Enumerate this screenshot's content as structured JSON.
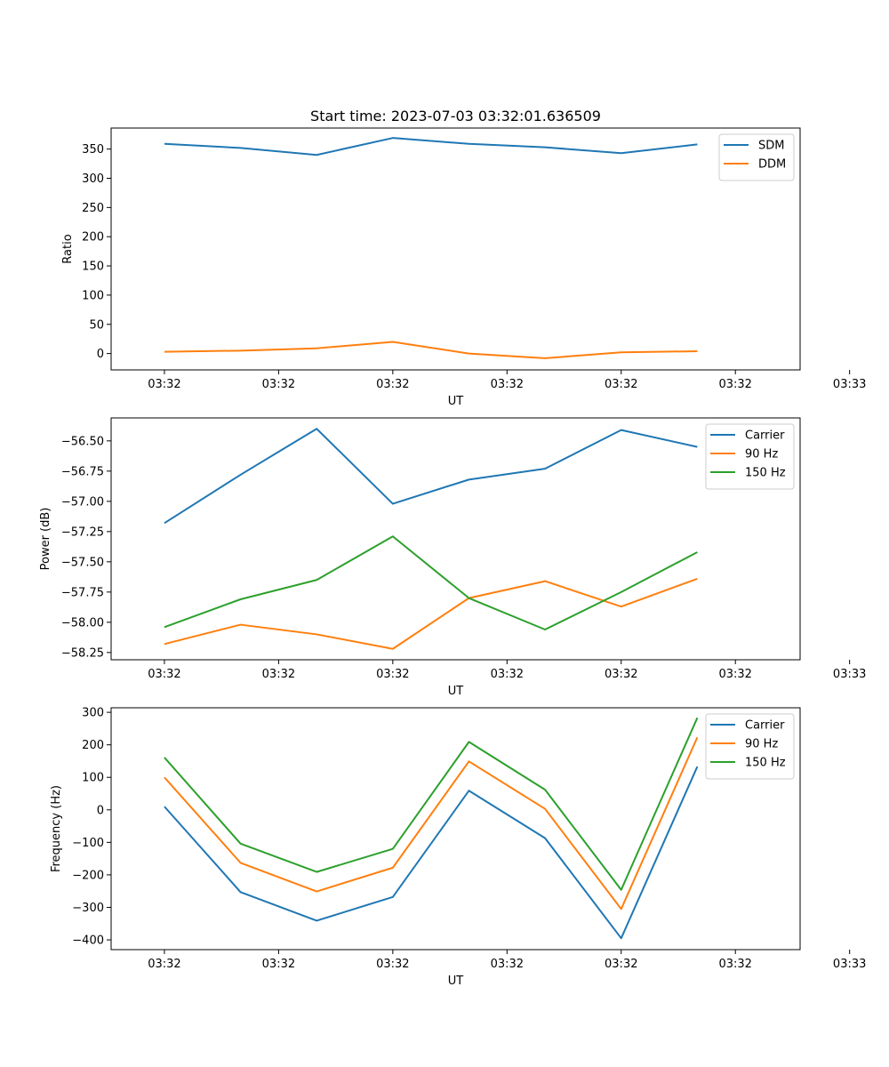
{
  "figure_title": "Start time: 2023-07-03 03:32:01.636509",
  "chart_data": [
    {
      "type": "line",
      "title": "Start time: 2023-07-03 03:32:01.636509",
      "xlabel": "UT",
      "ylabel": "Ratio",
      "x_tick_labels": [
        "03:32",
        "03:32",
        "03:32",
        "03:32",
        "03:32",
        "03:32",
        "03:33"
      ],
      "x": [
        1,
        2,
        3,
        4,
        5,
        6,
        7,
        8
      ],
      "xlim": [
        0.3,
        9.35
      ],
      "ylim": [
        -28,
        386
      ],
      "y_ticks": [
        0,
        50,
        100,
        150,
        200,
        250,
        300,
        350
      ],
      "y_tick_labels": [
        "0",
        "50",
        "100",
        "150",
        "200",
        "250",
        "300",
        "350"
      ],
      "legend_position": "top-right",
      "series": [
        {
          "name": "SDM",
          "color": "#1f77b4",
          "values": [
            359,
            352,
            340,
            369,
            359,
            353,
            343,
            358
          ]
        },
        {
          "name": "DDM",
          "color": "#ff7f0e",
          "values": [
            3,
            5,
            9,
            20,
            0,
            -8,
            2,
            4
          ]
        }
      ]
    },
    {
      "type": "line",
      "title": "",
      "xlabel": "UT",
      "ylabel": "Power (dB)",
      "x_tick_labels": [
        "03:32",
        "03:32",
        "03:32",
        "03:32",
        "03:32",
        "03:32",
        "03:33"
      ],
      "x": [
        1,
        2,
        3,
        4,
        5,
        6,
        7,
        8
      ],
      "xlim": [
        0.3,
        9.35
      ],
      "ylim": [
        -58.31,
        -56.31
      ],
      "y_ticks": [
        -58.25,
        -58.0,
        -57.75,
        -57.5,
        -57.25,
        -57.0,
        -56.75,
        -56.5
      ],
      "y_tick_labels": [
        "−58.25",
        "−58.00",
        "−57.75",
        "−57.50",
        "−57.25",
        "−57.00",
        "−56.75",
        "−56.50"
      ],
      "legend_position": "top-right",
      "series": [
        {
          "name": "Carrier",
          "color": "#1f77b4",
          "values": [
            -57.18,
            -56.78,
            -56.4,
            -57.02,
            -56.82,
            -56.73,
            -56.41,
            -56.55
          ]
        },
        {
          "name": "90 Hz",
          "color": "#ff7f0e",
          "values": [
            -58.18,
            -58.02,
            -58.1,
            -58.22,
            -57.8,
            -57.66,
            -57.87,
            -57.64
          ]
        },
        {
          "name": "150 Hz",
          "color": "#2ca02c",
          "values": [
            -58.04,
            -57.81,
            -57.65,
            -57.29,
            -57.8,
            -58.06,
            -57.75,
            -57.42
          ]
        }
      ]
    },
    {
      "type": "line",
      "title": "",
      "xlabel": "UT",
      "ylabel": "Frequency (Hz)",
      "x_tick_labels": [
        "03:32",
        "03:32",
        "03:32",
        "03:32",
        "03:32",
        "03:32",
        "03:33"
      ],
      "x": [
        1,
        2,
        3,
        4,
        5,
        6,
        7,
        8
      ],
      "xlim": [
        0.3,
        9.35
      ],
      "ylim": [
        -430,
        314
      ],
      "y_ticks": [
        -400,
        -300,
        -200,
        -100,
        0,
        100,
        200,
        300
      ],
      "y_tick_labels": [
        "−400",
        "−300",
        "−200",
        "−100",
        "0",
        "100",
        "200",
        "300"
      ],
      "legend_position": "top-right",
      "series": [
        {
          "name": "Carrier",
          "color": "#1f77b4",
          "values": [
            10,
            -253,
            -341,
            -268,
            59,
            -87,
            -395,
            133
          ]
        },
        {
          "name": "90 Hz",
          "color": "#ff7f0e",
          "values": [
            100,
            -163,
            -251,
            -178,
            149,
            3,
            -305,
            223
          ]
        },
        {
          "name": "150 Hz",
          "color": "#2ca02c",
          "values": [
            161,
            -104,
            -191,
            -120,
            209,
            62,
            -246,
            283
          ]
        }
      ]
    }
  ]
}
